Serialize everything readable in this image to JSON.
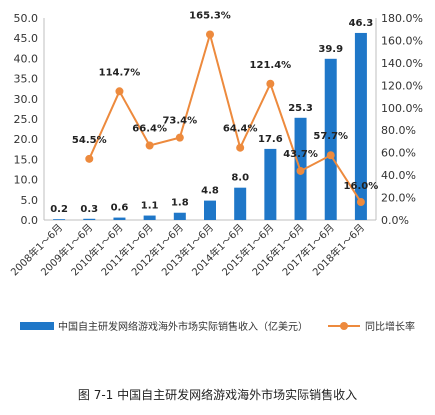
{
  "caption": "图 7-1 中国自主研发网络游戏海外市场实际销售收入",
  "chart_data": {
    "type": "bar",
    "categories": [
      "2008年1～6月",
      "2009年1～6月",
      "2010年1～6月",
      "2011年1～6月",
      "2012年1～6月",
      "2013年1～6月",
      "2014年1～6月",
      "2015年1～6月",
      "2016年1～6月",
      "2017年1～6月",
      "2018年1～6月"
    ],
    "series": [
      {
        "name": "中国自主研发网络游戏海外市场实际销售收入（亿美元）",
        "type": "bar",
        "axis": "left",
        "color": "#1f77c8",
        "values": [
          0.2,
          0.3,
          0.6,
          1.1,
          1.8,
          4.8,
          8.0,
          17.6,
          25.3,
          39.9,
          46.3
        ],
        "labels": [
          "0.2",
          "0.3",
          "0.6",
          "1.1",
          "1.8",
          "4.8",
          "8.0",
          "17.6",
          "25.3",
          "39.9",
          "46.3"
        ]
      },
      {
        "name": "同比增长率",
        "type": "line",
        "axis": "right",
        "color": "#ed8a3d",
        "values": [
          null,
          54.5,
          114.7,
          66.4,
          73.4,
          165.3,
          64.4,
          121.4,
          43.7,
          57.7,
          16.0
        ],
        "labels": [
          "",
          "54.5%",
          "114.7%",
          "66.4%",
          "73.4%",
          "165.3%",
          "64.4%",
          "121.4%",
          "43.7%",
          "57.7%",
          "16.0%"
        ]
      }
    ],
    "y_left": {
      "min": 0,
      "max": 50,
      "ticks": [
        0,
        5,
        10,
        15,
        20,
        25,
        30,
        35,
        40,
        45,
        50
      ],
      "tick_labels": [
        "0.0",
        "5.0",
        "10.0",
        "15.0",
        "20.0",
        "25.0",
        "30.0",
        "35.0",
        "40.0",
        "45.0",
        "50.0"
      ]
    },
    "y_right": {
      "min": 0,
      "max": 180,
      "ticks": [
        0,
        20,
        40,
        60,
        80,
        100,
        120,
        140,
        160,
        180
      ],
      "tick_labels": [
        "0.0%",
        "20.0%",
        "40.0%",
        "60.0%",
        "80.0%",
        "100.0%",
        "120.0%",
        "140.0%",
        "160.0%",
        "180.0%"
      ]
    },
    "grid": false,
    "legend_position": "bottom"
  }
}
